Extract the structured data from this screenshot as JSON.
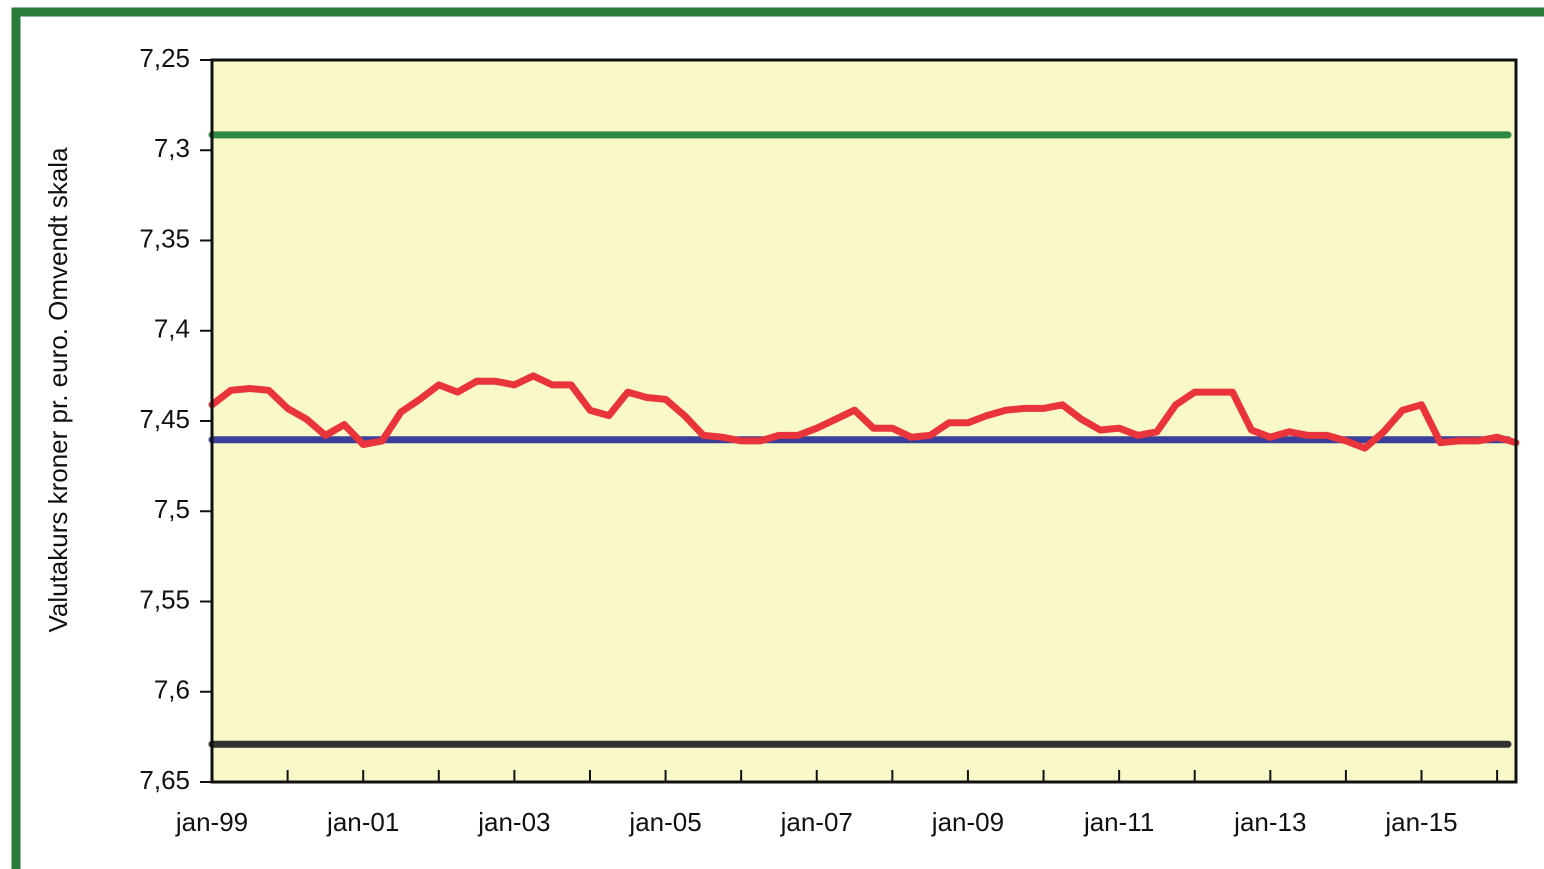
{
  "chart_data": {
    "type": "line",
    "y_label": "Valutakurs kroner pr. euro. Omvendt skala",
    "y_inverted": true,
    "ylim": [
      7.25,
      7.65
    ],
    "yticks": [
      {
        "value": 7.25,
        "label": "7,25"
      },
      {
        "value": 7.3,
        "label": "7,3"
      },
      {
        "value": 7.35,
        "label": "7,35"
      },
      {
        "value": 7.4,
        "label": "7,4"
      },
      {
        "value": 7.45,
        "label": "7,45"
      },
      {
        "value": 7.5,
        "label": "7,5"
      },
      {
        "value": 7.55,
        "label": "7,55"
      },
      {
        "value": 7.6,
        "label": "7,6"
      },
      {
        "value": 7.65,
        "label": "7,65"
      }
    ],
    "categories": [
      "jan-99",
      null,
      null,
      null,
      null,
      null,
      null,
      null,
      "jan-01",
      null,
      null,
      null,
      null,
      null,
      null,
      null,
      "jan-03",
      null,
      null,
      null,
      null,
      null,
      null,
      null,
      "jan-05",
      null,
      null,
      null,
      null,
      null,
      null,
      null,
      "jan-07",
      null,
      null,
      null,
      null,
      null,
      null,
      null,
      "jan-09",
      null,
      null,
      null,
      null,
      null,
      null,
      null,
      "jan-11",
      null,
      null,
      null,
      null,
      null,
      null,
      null,
      "jan-13",
      null,
      null,
      null,
      null,
      null,
      null,
      null,
      "jan-15",
      null,
      null,
      null,
      null,
      null
    ],
    "series": [
      {
        "color": "#e8343a",
        "values": [
          7.441,
          7.433,
          7.432,
          7.433,
          7.443,
          7.449,
          7.458,
          7.452,
          7.463,
          7.461,
          7.445,
          7.438,
          7.43,
          7.434,
          7.428,
          7.428,
          7.43,
          7.425,
          7.43,
          7.43,
          7.444,
          7.447,
          7.434,
          7.437,
          7.438,
          7.447,
          7.458,
          7.459,
          7.461,
          7.461,
          7.458,
          7.458,
          7.454,
          7.449,
          7.444,
          7.454,
          7.454,
          7.459,
          7.458,
          7.451,
          7.451,
          7.447,
          7.444,
          7.443,
          7.443,
          7.441,
          7.449,
          7.455,
          7.454,
          7.458,
          7.456,
          7.441,
          7.434,
          7.434,
          7.434,
          7.455,
          7.459,
          7.456,
          7.458,
          7.458,
          7.461,
          7.465,
          7.456,
          7.444,
          7.441,
          7.462,
          7.461,
          7.461,
          7.459,
          7.462
        ]
      }
    ],
    "reference_lines": [
      {
        "value": 7.2915,
        "color": "#2e8b45"
      },
      {
        "value": 7.4604,
        "color": "#3a3f9a"
      },
      {
        "value": 7.6291,
        "color": "#333333"
      }
    ]
  }
}
